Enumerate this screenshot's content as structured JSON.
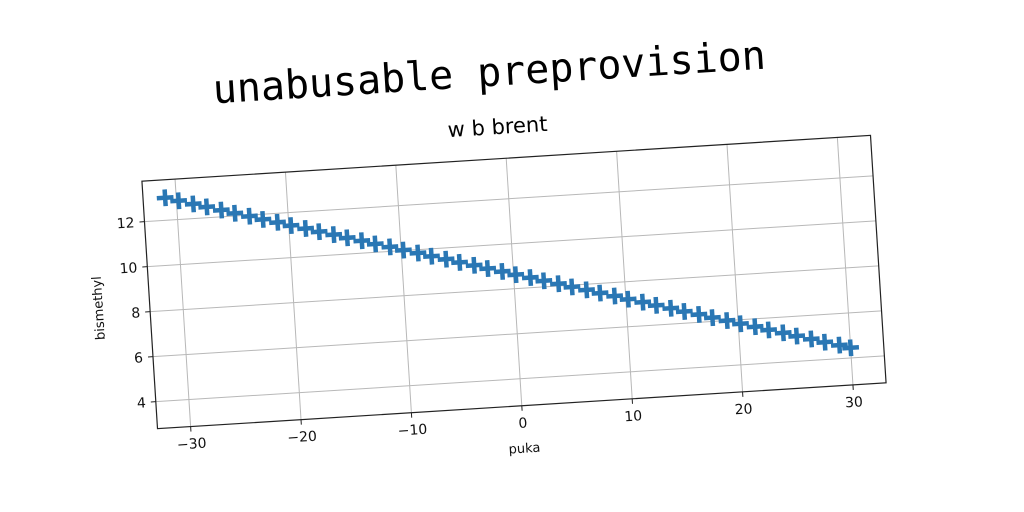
{
  "chart_data": {
    "type": "scatter",
    "title": "unabusable preprovision",
    "subtitle": "w b brent",
    "xlabel": "puka",
    "ylabel": "bismethyl",
    "xlim": [
      -33,
      33
    ],
    "ylim": [
      2.8,
      13.8
    ],
    "xticks": [
      -30,
      -20,
      -10,
      0,
      10,
      20,
      30
    ],
    "yticks": [
      4,
      6,
      8,
      10,
      12
    ],
    "xtick_labels": [
      "−30",
      "−20",
      "−10",
      "0",
      "10",
      "20",
      "30"
    ],
    "ytick_labels": [
      "4",
      "6",
      "8",
      "10",
      "12"
    ],
    "grid": true,
    "marker": "X",
    "series": [
      {
        "x": [
          -31.0,
          -29.8,
          -28.5,
          -27.3,
          -26.0,
          -24.8,
          -23.5,
          -22.3,
          -21.0,
          -19.8,
          -18.5,
          -17.3,
          -16.0,
          -14.8,
          -13.5,
          -12.3,
          -11.0,
          -9.8,
          -8.5,
          -7.3,
          -6.0,
          -4.8,
          -3.5,
          -2.3,
          -1.0,
          0.2,
          1.5,
          2.7,
          4.0,
          5.2,
          6.5,
          7.7,
          9.0,
          10.2,
          11.5,
          12.7,
          14.0,
          15.2,
          16.5,
          17.7,
          19.0,
          20.2,
          21.5,
          22.7,
          24.0,
          25.2,
          26.5,
          27.7,
          29.0,
          30.0
        ],
        "y": [
          13.0,
          12.83,
          12.65,
          12.48,
          12.3,
          12.12,
          11.95,
          11.77,
          11.6,
          11.42,
          11.25,
          11.07,
          10.9,
          10.72,
          10.55,
          10.37,
          10.2,
          10.02,
          9.85,
          9.67,
          9.5,
          9.32,
          9.15,
          8.97,
          8.8,
          8.62,
          8.45,
          8.27,
          8.1,
          7.92,
          7.75,
          7.57,
          7.4,
          7.22,
          7.05,
          6.87,
          6.7,
          6.52,
          6.35,
          6.17,
          6.0,
          5.82,
          5.65,
          5.47,
          5.3,
          5.12,
          4.95,
          4.77,
          4.6,
          4.45
        ],
        "color": "#2a77b4"
      }
    ]
  }
}
